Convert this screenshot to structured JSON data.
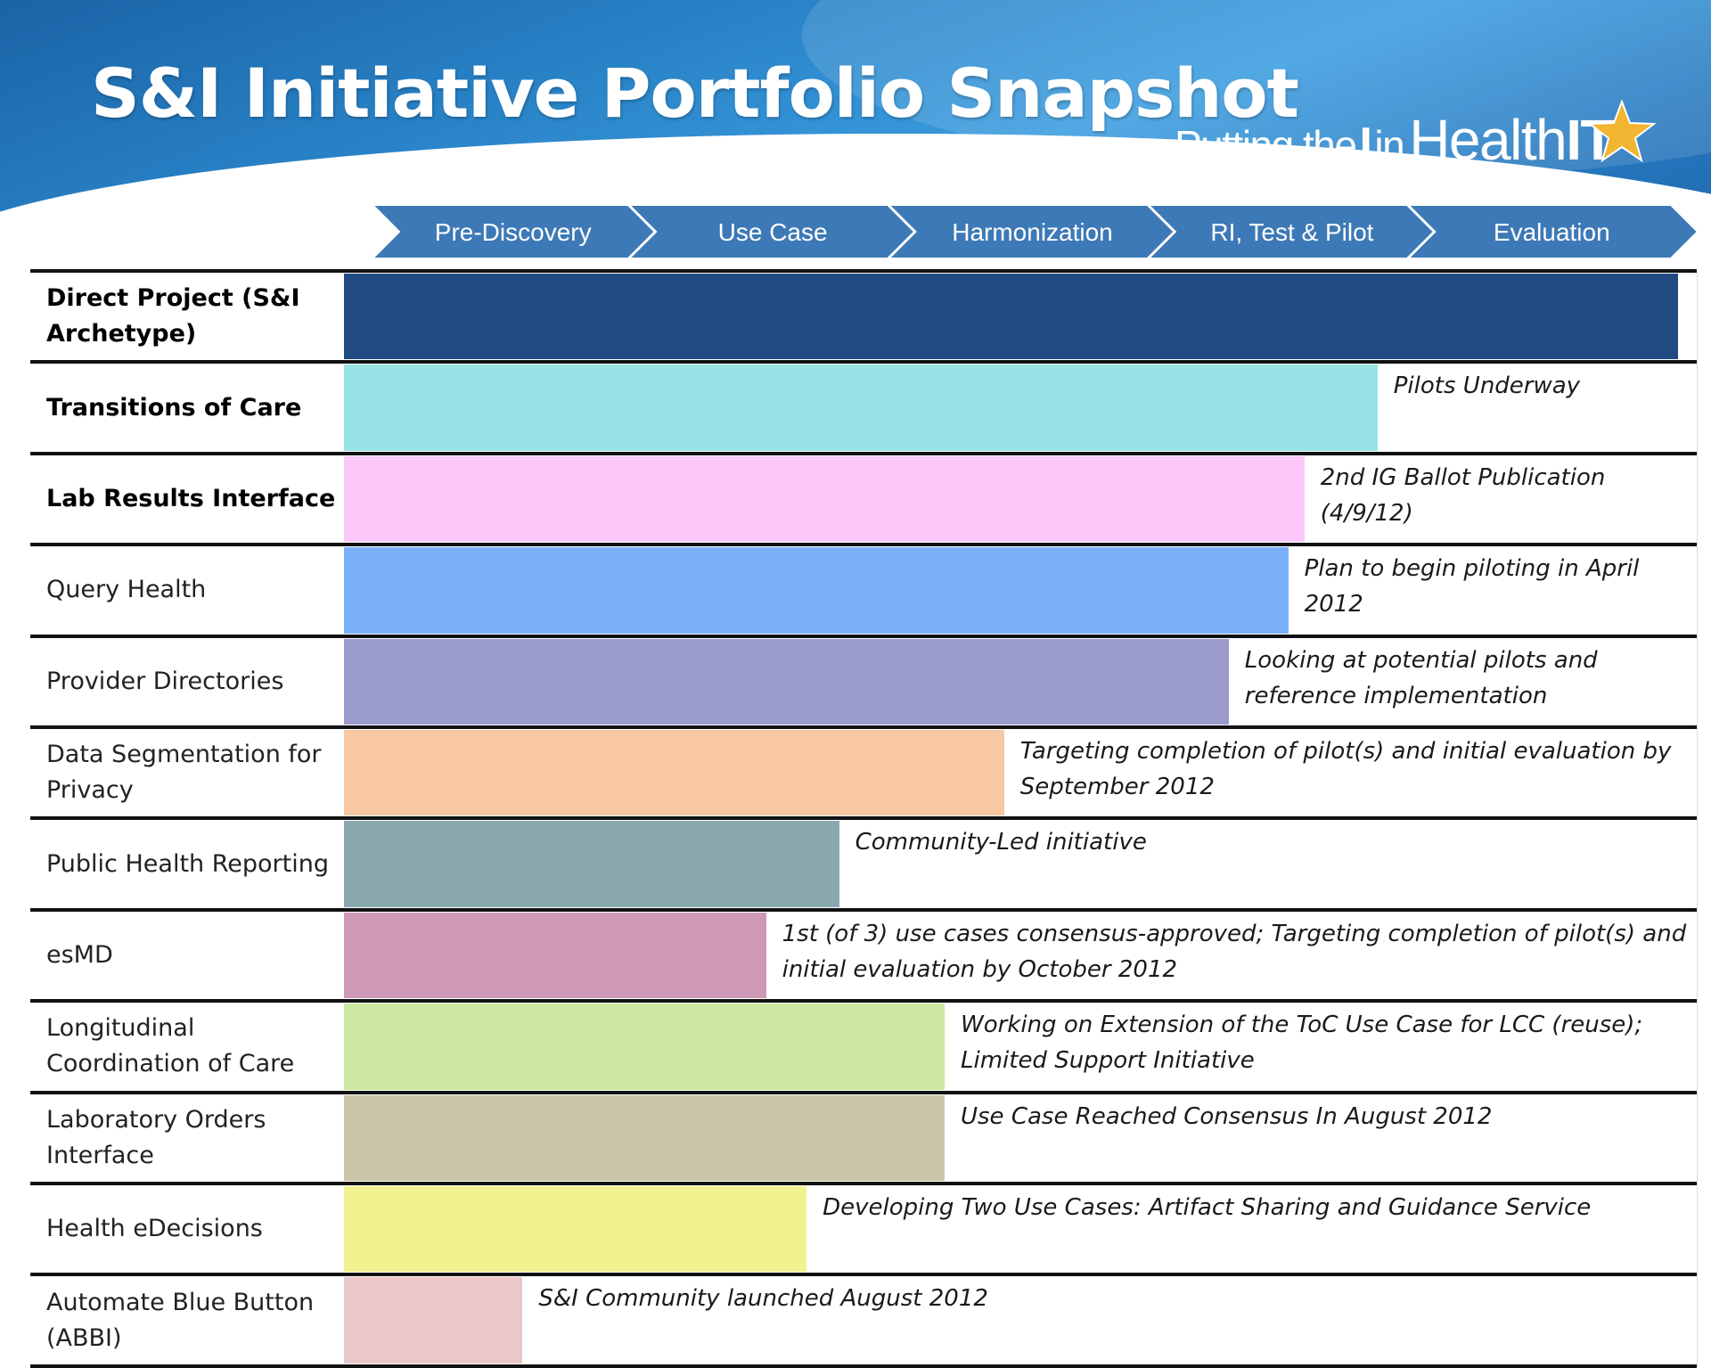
{
  "title": "S&I Initiative Portfolio Snapshot",
  "logo": {
    "line_a": "Putting the",
    "line_i": "I",
    "line_in": "in",
    "line_health": "Health",
    "line_it": "IT",
    "url": "www.HealthIT.gov"
  },
  "colors": {
    "banner": "#2a84c8",
    "phase_arrow": "#3d79b6",
    "star": "#f2b531"
  },
  "chart_data": {
    "type": "bar",
    "orientation": "horizontal",
    "x_categories": [
      "Pre-Discovery",
      "Use Case",
      "Harmonization",
      "RI, Test & Pilot",
      "Evaluation"
    ],
    "xlim": [
      0,
      5
    ],
    "rows": [
      {
        "label": "Direct Project (S&I Archetype)",
        "value": 4.93,
        "color": "#1f4a82",
        "bold": true,
        "note": ""
      },
      {
        "label": "Transitions of Care",
        "value": 3.82,
        "color": "#98e3e6",
        "bold": true,
        "note": "Pilots Underway"
      },
      {
        "label": "Lab Results Interface",
        "value": 3.55,
        "color": "#fcc8fa",
        "bold": true,
        "note": "2nd IG Ballot Publication (4/9/12)"
      },
      {
        "label": "Query Health",
        "value": 3.49,
        "color": "#7ab0f8",
        "bold": false,
        "note": "Plan to begin piloting in April 2012"
      },
      {
        "label": "Provider Directories",
        "value": 3.27,
        "color": "#9a9acc",
        "bold": false,
        "note": "Looking at potential pilots and reference implementation"
      },
      {
        "label": "Data Segmentation for Privacy",
        "value": 2.44,
        "color": "#f8c8a2",
        "bold": false,
        "note": "Targeting completion of pilot(s) and initial evaluation by September 2012"
      },
      {
        "label": "Public Health Reporting",
        "value": 1.83,
        "color": "#89a8ad",
        "bold": false,
        "note": "Community-Led initiative"
      },
      {
        "label": "esMD",
        "value": 1.56,
        "color": "#cd99b5",
        "bold": false,
        "note": "1st (of 3) use cases consensus-approved; Targeting completion of pilot(s) and initial evaluation by October 2012"
      },
      {
        "label": "Longitudinal Coordination of Care",
        "value": 2.22,
        "color": "#cde8a0",
        "bold": false,
        "note": "Working on Extension of the ToC Use Case for LCC (reuse); Limited Support Initiative"
      },
      {
        "label": "Laboratory Orders Interface",
        "value": 2.22,
        "color": "#cbc4a8",
        "bold": false,
        "note": "Use Case Reached Consensus In August 2012"
      },
      {
        "label": "Health eDecisions",
        "value": 1.71,
        "color": "#f2f290",
        "bold": false,
        "note": "Developing Two Use Cases: Artifact Sharing and Guidance Service"
      },
      {
        "label": "Automate Blue Button (ABBI)",
        "value": 0.66,
        "color": "#eac7c8",
        "bold": false,
        "note": "S&I Community launched August 2012"
      }
    ]
  }
}
